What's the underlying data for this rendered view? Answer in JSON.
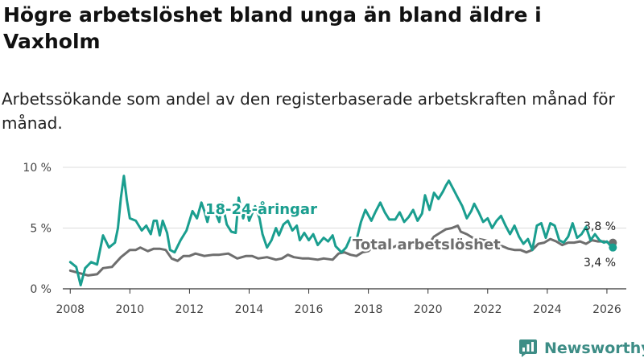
{
  "title": "Högre arbetslöshet bland unga än bland äldre i Vaxholm",
  "subtitle": "Arbetssökande som andel av den registerbaserade arbetskraften månad för månad.",
  "brand": {
    "name": "Newsworthy",
    "icon": "bar-chart-logo-icon"
  },
  "colors": {
    "youth": "#1a9e8f",
    "total": "#6e6e6e",
    "grid": "#dcdcdc",
    "axis": "#444444",
    "brand": "#3d8d86"
  },
  "chart_data": {
    "type": "line",
    "title": "Högre arbetslöshet bland unga än bland äldre i Vaxholm",
    "xlabel": "",
    "ylabel": "",
    "xlim": [
      2007.75,
      2026.65
    ],
    "ylim": [
      0,
      10
    ],
    "yticks": [
      0,
      5,
      10
    ],
    "ytick_labels": [
      "0 %",
      "5 %",
      "10 %"
    ],
    "xticks": [
      2008,
      2010,
      2012,
      2014,
      2016,
      2018,
      2020,
      2022,
      2024,
      2026
    ],
    "xtick_labels": [
      "2008",
      "2010",
      "2012",
      "2014",
      "2016",
      "2018",
      "2020",
      "2022",
      "2024",
      "2026"
    ],
    "grid": true,
    "series": [
      {
        "name": "18-24-åringar",
        "label": "18-24-åringar",
        "color": "#1a9e8f",
        "end_label": "3,4 %",
        "points": [
          [
            2008.0,
            2.2
          ],
          [
            2008.2,
            1.8
          ],
          [
            2008.35,
            0.3
          ],
          [
            2008.5,
            1.7
          ],
          [
            2008.7,
            2.2
          ],
          [
            2008.9,
            2.0
          ],
          [
            2009.1,
            4.4
          ],
          [
            2009.3,
            3.4
          ],
          [
            2009.5,
            3.8
          ],
          [
            2009.6,
            5.0
          ],
          [
            2009.7,
            7.5
          ],
          [
            2009.8,
            9.3
          ],
          [
            2009.9,
            7.3
          ],
          [
            2010.0,
            5.8
          ],
          [
            2010.2,
            5.6
          ],
          [
            2010.4,
            4.8
          ],
          [
            2010.55,
            5.2
          ],
          [
            2010.7,
            4.5
          ],
          [
            2010.8,
            5.6
          ],
          [
            2010.9,
            5.6
          ],
          [
            2011.0,
            4.4
          ],
          [
            2011.1,
            5.6
          ],
          [
            2011.25,
            4.6
          ],
          [
            2011.35,
            3.2
          ],
          [
            2011.5,
            3.0
          ],
          [
            2011.7,
            4.0
          ],
          [
            2011.9,
            4.8
          ],
          [
            2012.1,
            6.4
          ],
          [
            2012.25,
            5.8
          ],
          [
            2012.4,
            7.1
          ],
          [
            2012.5,
            6.4
          ],
          [
            2012.6,
            5.5
          ],
          [
            2012.7,
            6.5
          ],
          [
            2012.85,
            6.4
          ],
          [
            2013.0,
            5.5
          ],
          [
            2013.1,
            7.1
          ],
          [
            2013.25,
            5.3
          ],
          [
            2013.4,
            4.7
          ],
          [
            2013.55,
            4.6
          ],
          [
            2013.65,
            7.5
          ],
          [
            2013.8,
            5.8
          ],
          [
            2013.9,
            6.8
          ],
          [
            2014.0,
            5.6
          ],
          [
            2014.2,
            6.8
          ],
          [
            2014.35,
            5.8
          ],
          [
            2014.45,
            4.5
          ],
          [
            2014.6,
            3.4
          ],
          [
            2014.75,
            4.0
          ],
          [
            2014.9,
            5.0
          ],
          [
            2015.0,
            4.4
          ],
          [
            2015.15,
            5.3
          ],
          [
            2015.3,
            5.6
          ],
          [
            2015.45,
            4.8
          ],
          [
            2015.6,
            5.2
          ],
          [
            2015.7,
            4.0
          ],
          [
            2015.85,
            4.6
          ],
          [
            2016.0,
            4.0
          ],
          [
            2016.15,
            4.5
          ],
          [
            2016.3,
            3.6
          ],
          [
            2016.5,
            4.2
          ],
          [
            2016.65,
            3.9
          ],
          [
            2016.8,
            4.4
          ],
          [
            2016.9,
            3.5
          ],
          [
            2017.1,
            3.0
          ],
          [
            2017.25,
            3.4
          ],
          [
            2017.4,
            4.2
          ],
          [
            2017.6,
            4.0
          ],
          [
            2017.75,
            5.5
          ],
          [
            2017.9,
            6.5
          ],
          [
            2018.1,
            5.6
          ],
          [
            2018.25,
            6.4
          ],
          [
            2018.4,
            7.1
          ],
          [
            2018.55,
            6.3
          ],
          [
            2018.7,
            5.7
          ],
          [
            2018.9,
            5.7
          ],
          [
            2019.05,
            6.3
          ],
          [
            2019.2,
            5.5
          ],
          [
            2019.35,
            5.9
          ],
          [
            2019.5,
            6.5
          ],
          [
            2019.65,
            5.6
          ],
          [
            2019.8,
            6.2
          ],
          [
            2019.9,
            7.7
          ],
          [
            2020.05,
            6.5
          ],
          [
            2020.2,
            7.9
          ],
          [
            2020.35,
            7.4
          ],
          [
            2020.5,
            8.0
          ],
          [
            2020.6,
            8.5
          ],
          [
            2020.7,
            8.9
          ],
          [
            2020.85,
            8.2
          ],
          [
            2021.0,
            7.5
          ],
          [
            2021.15,
            6.8
          ],
          [
            2021.3,
            5.8
          ],
          [
            2021.45,
            6.4
          ],
          [
            2021.55,
            7.0
          ],
          [
            2021.7,
            6.3
          ],
          [
            2021.85,
            5.5
          ],
          [
            2022.0,
            5.8
          ],
          [
            2022.15,
            5.0
          ],
          [
            2022.3,
            5.6
          ],
          [
            2022.45,
            6.0
          ],
          [
            2022.6,
            5.2
          ],
          [
            2022.75,
            4.5
          ],
          [
            2022.9,
            5.2
          ],
          [
            2023.05,
            4.3
          ],
          [
            2023.2,
            3.7
          ],
          [
            2023.35,
            4.1
          ],
          [
            2023.5,
            3.2
          ],
          [
            2023.65,
            5.2
          ],
          [
            2023.8,
            5.4
          ],
          [
            2023.95,
            4.2
          ],
          [
            2024.1,
            5.4
          ],
          [
            2024.25,
            5.2
          ],
          [
            2024.4,
            4.0
          ],
          [
            2024.55,
            3.8
          ],
          [
            2024.7,
            4.3
          ],
          [
            2024.85,
            5.4
          ],
          [
            2025.0,
            4.2
          ],
          [
            2025.15,
            4.5
          ],
          [
            2025.3,
            5.1
          ],
          [
            2025.45,
            4.0
          ],
          [
            2025.6,
            4.5
          ],
          [
            2025.75,
            4.0
          ],
          [
            2025.9,
            3.8
          ],
          [
            2026.0,
            3.9
          ],
          [
            2026.1,
            3.6
          ],
          [
            2026.2,
            3.4
          ]
        ]
      },
      {
        "name": "Total arbetslöshet",
        "label": "Total arbetslöshet",
        "color": "#6e6e6e",
        "end_label": "3,8 %",
        "points": [
          [
            2008.0,
            1.5
          ],
          [
            2008.3,
            1.3
          ],
          [
            2008.6,
            1.1
          ],
          [
            2008.9,
            1.2
          ],
          [
            2009.1,
            1.7
          ],
          [
            2009.4,
            1.8
          ],
          [
            2009.7,
            2.6
          ],
          [
            2010.0,
            3.2
          ],
          [
            2010.2,
            3.2
          ],
          [
            2010.35,
            3.4
          ],
          [
            2010.6,
            3.1
          ],
          [
            2010.8,
            3.3
          ],
          [
            2011.0,
            3.3
          ],
          [
            2011.2,
            3.2
          ],
          [
            2011.4,
            2.5
          ],
          [
            2011.6,
            2.3
          ],
          [
            2011.8,
            2.7
          ],
          [
            2012.0,
            2.7
          ],
          [
            2012.2,
            2.9
          ],
          [
            2012.5,
            2.7
          ],
          [
            2012.8,
            2.8
          ],
          [
            2013.0,
            2.8
          ],
          [
            2013.3,
            2.9
          ],
          [
            2013.6,
            2.5
          ],
          [
            2013.9,
            2.7
          ],
          [
            2014.1,
            2.7
          ],
          [
            2014.3,
            2.5
          ],
          [
            2014.6,
            2.6
          ],
          [
            2014.9,
            2.4
          ],
          [
            2015.1,
            2.5
          ],
          [
            2015.3,
            2.8
          ],
          [
            2015.5,
            2.6
          ],
          [
            2015.8,
            2.5
          ],
          [
            2016.0,
            2.5
          ],
          [
            2016.3,
            2.4
          ],
          [
            2016.5,
            2.5
          ],
          [
            2016.8,
            2.4
          ],
          [
            2017.0,
            2.9
          ],
          [
            2017.2,
            3.0
          ],
          [
            2017.4,
            2.8
          ],
          [
            2017.6,
            2.7
          ],
          [
            2017.8,
            3.0
          ],
          [
            2018.0,
            3.1
          ],
          [
            2018.2,
            3.6
          ],
          [
            2018.4,
            3.6
          ],
          [
            2018.6,
            3.5
          ],
          [
            2018.8,
            3.4
          ],
          [
            2019.0,
            3.6
          ],
          [
            2019.2,
            3.5
          ],
          [
            2019.4,
            3.7
          ],
          [
            2019.6,
            3.6
          ],
          [
            2019.8,
            3.5
          ],
          [
            2020.0,
            3.6
          ],
          [
            2020.2,
            4.3
          ],
          [
            2020.4,
            4.6
          ],
          [
            2020.6,
            4.9
          ],
          [
            2020.8,
            5.0
          ],
          [
            2021.0,
            5.2
          ],
          [
            2021.1,
            4.7
          ],
          [
            2021.3,
            4.5
          ],
          [
            2021.5,
            4.2
          ],
          [
            2021.7,
            4.1
          ],
          [
            2021.9,
            4.0
          ],
          [
            2022.1,
            3.9
          ],
          [
            2022.3,
            3.6
          ],
          [
            2022.5,
            3.5
          ],
          [
            2022.7,
            3.3
          ],
          [
            2022.9,
            3.2
          ],
          [
            2023.1,
            3.2
          ],
          [
            2023.3,
            3.0
          ],
          [
            2023.5,
            3.2
          ],
          [
            2023.7,
            3.7
          ],
          [
            2023.9,
            3.8
          ],
          [
            2024.1,
            4.1
          ],
          [
            2024.3,
            3.9
          ],
          [
            2024.5,
            3.6
          ],
          [
            2024.7,
            3.8
          ],
          [
            2024.9,
            3.8
          ],
          [
            2025.1,
            3.9
          ],
          [
            2025.3,
            3.7
          ],
          [
            2025.5,
            4.0
          ],
          [
            2025.7,
            3.9
          ],
          [
            2025.9,
            3.9
          ],
          [
            2026.05,
            3.8
          ],
          [
            2026.2,
            3.8
          ]
        ]
      }
    ]
  }
}
